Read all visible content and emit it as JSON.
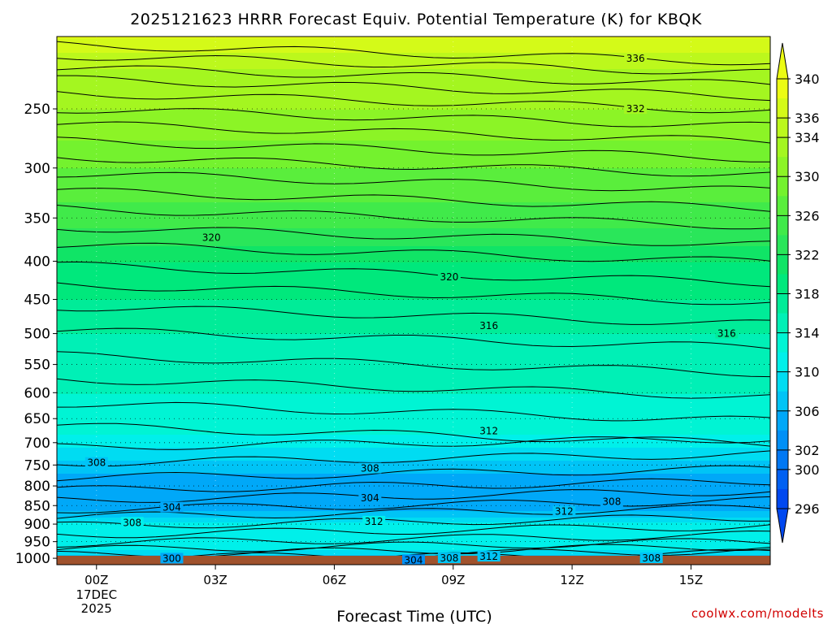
{
  "chart_data": {
    "type": "heatmap",
    "title": "2025121623 HRRR Forecast Equiv. Potential Temperature (K) for KBQK",
    "xlabel": "Forecast Time (UTC)",
    "ylabel": "",
    "x_hours": [
      -1,
      17
    ],
    "x_ticks": [
      {
        "hour": 0,
        "label": "00Z",
        "sub1": "17DEC",
        "sub2": "2025"
      },
      {
        "hour": 3,
        "label": "03Z"
      },
      {
        "hour": 6,
        "label": "06Z"
      },
      {
        "hour": 9,
        "label": "09Z"
      },
      {
        "hour": 12,
        "label": "12Z"
      },
      {
        "hour": 15,
        "label": "15Z"
      }
    ],
    "y_axis": "pressure (hPa), log scale, inverted",
    "y_range_hpa": [
      1020,
      200
    ],
    "y_ticks": [
      250,
      300,
      350,
      400,
      450,
      500,
      550,
      600,
      650,
      700,
      750,
      800,
      850,
      900,
      950,
      1000
    ],
    "colorbar": {
      "levels": [
        296,
        298,
        300,
        302,
        304,
        306,
        308,
        310,
        312,
        314,
        316,
        318,
        320,
        322,
        324,
        326,
        328,
        330,
        332,
        334,
        336,
        338,
        340
      ],
      "tick_labels": [
        296,
        300,
        302,
        306,
        310,
        314,
        318,
        322,
        326,
        330,
        334,
        336,
        340
      ],
      "colors": [
        "#0048f0",
        "#0060f2",
        "#0078f4",
        "#0090f6",
        "#00a8f8",
        "#00c4f6",
        "#00dcf2",
        "#00f0ea",
        "#00f4d4",
        "#00f0b6",
        "#00ec98",
        "#00e87c",
        "#10e466",
        "#2ae65a",
        "#40ea4a",
        "#5aee3c",
        "#74f22e",
        "#8cf426",
        "#a4f620",
        "#bcf81c",
        "#d4fa18",
        "#ecfc14"
      ],
      "extend": "both"
    },
    "contour_labels": [
      {
        "text": "336",
        "hour": 13.6,
        "hpa": 214
      },
      {
        "text": "332",
        "hour": 13.6,
        "hpa": 250
      },
      {
        "text": "320",
        "hour": 2.9,
        "hpa": 372
      },
      {
        "text": "320",
        "hour": 8.9,
        "hpa": 420
      },
      {
        "text": "316",
        "hour": 9.9,
        "hpa": 488
      },
      {
        "text": "316",
        "hour": 15.9,
        "hpa": 500
      },
      {
        "text": "312",
        "hour": 9.9,
        "hpa": 675
      },
      {
        "text": "308",
        "hour": 0.0,
        "hpa": 745
      },
      {
        "text": "308",
        "hour": 6.9,
        "hpa": 758
      },
      {
        "text": "304",
        "hour": 6.9,
        "hpa": 830
      },
      {
        "text": "304",
        "hour": 1.9,
        "hpa": 855
      },
      {
        "text": "308",
        "hour": 13.0,
        "hpa": 840
      },
      {
        "text": "312",
        "hour": 11.8,
        "hpa": 866
      },
      {
        "text": "308",
        "hour": 0.9,
        "hpa": 896
      },
      {
        "text": "312",
        "hour": 7.0,
        "hpa": 893
      },
      {
        "text": "300",
        "hour": 1.9,
        "hpa": 1001
      },
      {
        "text": "304",
        "hour": 8.0,
        "hpa": 1006
      },
      {
        "text": "308",
        "hour": 8.9,
        "hpa": 1000
      },
      {
        "text": "312",
        "hour": 9.9,
        "hpa": 995
      },
      {
        "text": "308",
        "hour": 14.0,
        "hpa": 1000
      }
    ],
    "fill_profile": [
      {
        "hpa": 200,
        "value": 338
      },
      {
        "hpa": 220,
        "value": 334
      },
      {
        "hpa": 250,
        "value": 332
      },
      {
        "hpa": 300,
        "value": 328
      },
      {
        "hpa": 350,
        "value": 325
      },
      {
        "hpa": 400,
        "value": 320
      },
      {
        "hpa": 500,
        "value": 316
      },
      {
        "hpa": 600,
        "value": 314
      },
      {
        "hpa": 680,
        "value": 312
      },
      {
        "hpa": 740,
        "value": 308
      },
      {
        "hpa": 800,
        "value": 304
      },
      {
        "hpa": 850,
        "value": 304
      },
      {
        "hpa": 900,
        "value": 311
      },
      {
        "hpa": 960,
        "value": 312
      },
      {
        "hpa": 1000,
        "value": 306
      },
      {
        "hpa": 1010,
        "value": 302
      }
    ],
    "surface_color": "#a0522d",
    "credit": "coolwx.com/modelts"
  }
}
